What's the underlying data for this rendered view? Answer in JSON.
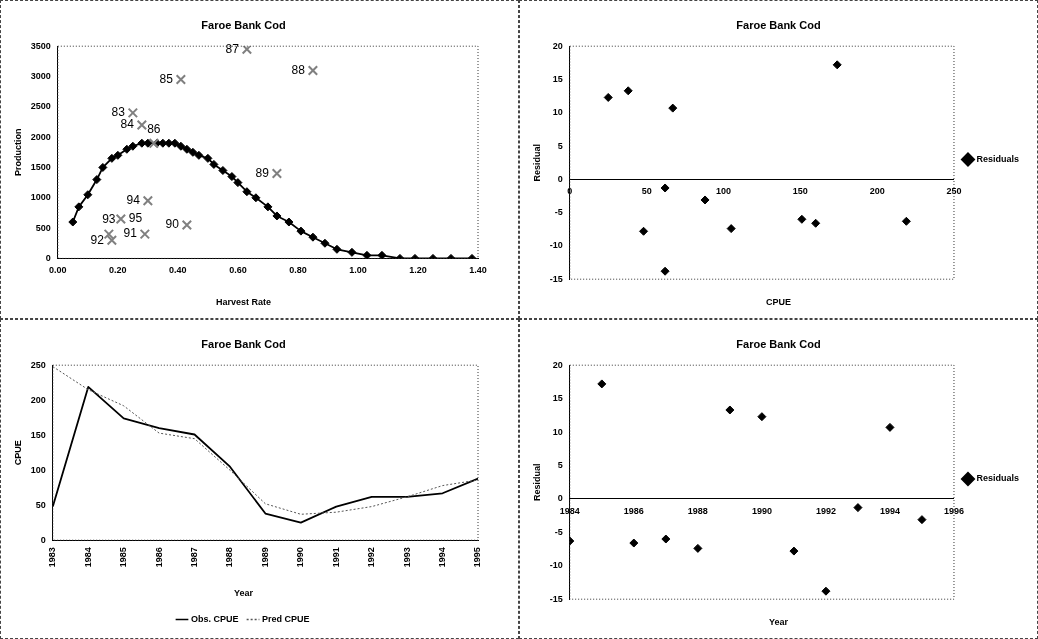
{
  "chart_data": [
    {
      "type": "scatter",
      "title": "Faroe Bank Cod",
      "xlabel": "Harvest Rate",
      "ylabel": "Production",
      "xlim": [
        0,
        1.4
      ],
      "xticks": [
        {
          "value": 0,
          "label": "0.00"
        },
        {
          "value": 0.2,
          "label": "0.20"
        },
        {
          "value": 0.4,
          "label": "0.40"
        },
        {
          "value": 0.6,
          "label": "0.60"
        },
        {
          "value": 0.8,
          "label": "0.80"
        },
        {
          "value": 1,
          "label": "1.00"
        },
        {
          "value": 1.2,
          "label": "1.20"
        },
        {
          "value": 1.4,
          "label": "1.40"
        }
      ],
      "ylim": [
        0,
        3500
      ],
      "yticks": [
        0,
        500,
        1000,
        1500,
        2000,
        2500,
        3000,
        3500
      ],
      "series": [
        {
          "type": "line",
          "marker": "diamond",
          "color": "#000000",
          "x": [
            0.05,
            0.07,
            0.1,
            0.13,
            0.15,
            0.18,
            0.2,
            0.23,
            0.25,
            0.28,
            0.3,
            0.33,
            0.35,
            0.37,
            0.39,
            0.41,
            0.43,
            0.45,
            0.47,
            0.5,
            0.52,
            0.55,
            0.58,
            0.6,
            0.63,
            0.66,
            0.7,
            0.73,
            0.77,
            0.81,
            0.85,
            0.89,
            0.93,
            0.98,
            1.03,
            1.08,
            1.14,
            1.19,
            1.25,
            1.31,
            1.38
          ],
          "values": [
            600,
            850,
            1050,
            1300,
            1500,
            1650,
            1700,
            1800,
            1850,
            1900,
            1900,
            1900,
            1900,
            1900,
            1900,
            1850,
            1800,
            1750,
            1700,
            1650,
            1550,
            1450,
            1350,
            1250,
            1100,
            1000,
            850,
            700,
            600,
            450,
            350,
            250,
            150,
            100,
            50,
            50,
            0,
            0,
            0,
            0,
            0
          ]
        },
        {
          "type": "scatter",
          "marker": "cross",
          "color": "#808080",
          "x": [
            0.25,
            0.28,
            0.41,
            0.32,
            0.63,
            0.85,
            0.73,
            0.43,
            0.29,
            0.18,
            0.17,
            0.3,
            0.21
          ],
          "values": [
            2400,
            2200,
            2950,
            1900,
            3450,
            3100,
            1400,
            550,
            400,
            300,
            400,
            950,
            650
          ]
        }
      ],
      "annotations": [
        {
          "text": "83",
          "x": 0.25,
          "y": 2400
        },
        {
          "text": "84",
          "x": 0.28,
          "y": 2200
        },
        {
          "text": "85",
          "x": 0.41,
          "y": 2950
        },
        {
          "text": "86",
          "x": 0.32,
          "y": 1900
        },
        {
          "text": "87",
          "x": 0.63,
          "y": 3450
        },
        {
          "text": "88",
          "x": 0.85,
          "y": 3100
        },
        {
          "text": "89",
          "x": 0.73,
          "y": 1400
        },
        {
          "text": "90",
          "x": 0.43,
          "y": 550
        },
        {
          "text": "91",
          "x": 0.29,
          "y": 400
        },
        {
          "text": "92",
          "x": 0.18,
          "y": 300
        },
        {
          "text": "93",
          "x": 0.17,
          "y": 400
        },
        {
          "text": "94",
          "x": 0.3,
          "y": 950
        },
        {
          "text": "95",
          "x": 0.21,
          "y": 650
        }
      ]
    },
    {
      "type": "scatter",
      "title": "Faroe Bank Cod",
      "xlabel": "CPUE",
      "ylabel": "Residual",
      "legend": "right",
      "xlim": [
        0,
        250
      ],
      "xticks": [
        0,
        50,
        100,
        150,
        200,
        250
      ],
      "ylim": [
        -15,
        20
      ],
      "yticks": [
        -15,
        -10,
        -5,
        0,
        5,
        10,
        15,
        20
      ],
      "marker": "diamond",
      "series": [
        {
          "name": "Residuals",
          "color": "#000000",
          "x": [
            219,
            174,
            160,
            151,
            105,
            38,
            25,
            48,
            62,
            62,
            67,
            88
          ],
          "values": [
            -6.3,
            17.2,
            -6.6,
            -6.0,
            -7.4,
            13.3,
            12.3,
            -7.8,
            -13.8,
            -1.3,
            10.7,
            -3.1
          ]
        }
      ]
    },
    {
      "type": "line",
      "title": "Faroe Bank Cod",
      "xlabel": "Year",
      "ylabel": "CPUE",
      "legend": "bottom",
      "categories": [
        "1983",
        "1984",
        "1985",
        "1986",
        "1987",
        "1988",
        "1989",
        "1990",
        "1991",
        "1992",
        "1993",
        "1994",
        "1995"
      ],
      "ylim": [
        0,
        250
      ],
      "yticks": [
        0,
        50,
        100,
        150,
        200,
        250
      ],
      "marker": "none",
      "series": [
        {
          "name": "Obs. CPUE",
          "color": "#000000",
          "line_style": "solid",
          "values": [
            48,
            219,
            174,
            160,
            151,
            105,
            38,
            25,
            48,
            62,
            62,
            67,
            88
          ]
        },
        {
          "name": "Pred CPUE",
          "color": "#555555",
          "line_style": "dotted",
          "values": [
            248,
            215,
            192,
            153,
            145,
            100,
            52,
            37,
            40,
            48,
            62,
            78,
            86
          ]
        }
      ]
    },
    {
      "type": "scatter",
      "title": "Faroe Bank Cod",
      "xlabel": "Year",
      "ylabel": "Residual",
      "legend": "right",
      "xlim": [
        1984,
        1996
      ],
      "xticks": [
        1984,
        1986,
        1988,
        1990,
        1992,
        1994,
        1996
      ],
      "ylim": [
        -15,
        20
      ],
      "yticks": [
        -15,
        -10,
        -5,
        0,
        5,
        10,
        15,
        20
      ],
      "marker": "diamond",
      "series": [
        {
          "name": "Residuals",
          "color": "#000000",
          "x": [
            1984,
            1985,
            1986,
            1987,
            1988,
            1989,
            1990,
            1991,
            1992,
            1993,
            1994,
            1995
          ],
          "values": [
            -6.3,
            17.2,
            -6.6,
            -6.0,
            -7.4,
            13.3,
            12.3,
            -7.8,
            -13.8,
            -1.3,
            10.7,
            -3.1
          ]
        }
      ]
    }
  ]
}
